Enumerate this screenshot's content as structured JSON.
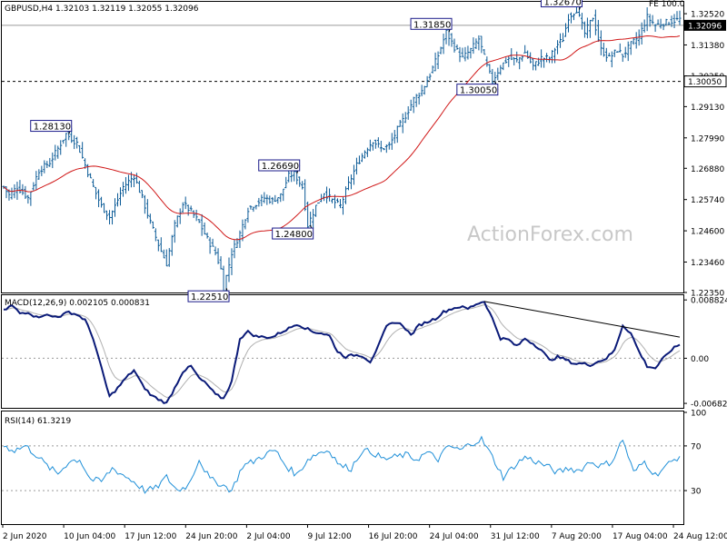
{
  "chart_data": [
    {
      "type": "bar",
      "panel": "price",
      "header": "GBPUSD,H4  1.32103 1.32119 1.32055 1.32096",
      "corner_label": "FE 100.0",
      "watermark": "ActionForex.com",
      "ylim": [
        1.2235,
        1.3292
      ],
      "y_ticks": [
        "1.32520",
        "1.31380",
        "1.30250",
        "1.29130",
        "1.27990",
        "1.26880",
        "1.25740",
        "1.24600",
        "1.23460",
        "1.22350"
      ],
      "x_ticks": [
        "2 Jun 2020",
        "10 Jun 04:00",
        "17 Jun 12:00",
        "24 Jun 20:00",
        "2 Jul 04:00",
        "9 Jul 12:00",
        "16 Jul 20:00",
        "24 Jul 04:00",
        "31 Jul 12:00",
        "7 Aug 20:00",
        "17 Aug 04:00",
        "24 Aug 12:00"
      ],
      "current_price": "1.32096",
      "support_level": "1.30050",
      "fe_level": "1.32520",
      "price_anchors": [
        [
          0,
          1.262
        ],
        [
          2,
          1.259
        ],
        [
          5,
          1.262
        ],
        [
          9,
          1.258
        ],
        [
          13,
          1.268
        ],
        [
          17,
          1.271
        ],
        [
          20,
          1.276
        ],
        [
          23,
          1.2813
        ],
        [
          27,
          1.278
        ],
        [
          30,
          1.27
        ],
        [
          33,
          1.262
        ],
        [
          36,
          1.255
        ],
        [
          39,
          1.251
        ],
        [
          41,
          1.255
        ],
        [
          44,
          1.262
        ],
        [
          48,
          1.266
        ],
        [
          51,
          1.258
        ],
        [
          54,
          1.249
        ],
        [
          57,
          1.241
        ],
        [
          60,
          1.234
        ],
        [
          63,
          1.248
        ],
        [
          66,
          1.256
        ],
        [
          69,
          1.253
        ],
        [
          72,
          1.249
        ],
        [
          75,
          1.243
        ],
        [
          78,
          1.238
        ],
        [
          80,
          1.232
        ],
        [
          81,
          1.2251
        ],
        [
          84,
          1.238
        ],
        [
          87,
          1.245
        ],
        [
          90,
          1.254
        ],
        [
          93,
          1.256
        ],
        [
          96,
          1.258
        ],
        [
          99,
          1.257
        ],
        [
          102,
          1.259
        ],
        [
          105,
          1.266
        ],
        [
          107,
          1.2669
        ],
        [
          110,
          1.262
        ],
        [
          112,
          1.248
        ],
        [
          115,
          1.255
        ],
        [
          118,
          1.26
        ],
        [
          121,
          1.257
        ],
        [
          124,
          1.255
        ],
        [
          127,
          1.263
        ],
        [
          130,
          1.27
        ],
        [
          133,
          1.275
        ],
        [
          136,
          1.279
        ],
        [
          139,
          1.276
        ],
        [
          142,
          1.277
        ],
        [
          145,
          1.283
        ],
        [
          148,
          1.288
        ],
        [
          151,
          1.294
        ],
        [
          154,
          1.297
        ],
        [
          157,
          1.303
        ],
        [
          160,
          1.31
        ],
        [
          163,
          1.3185
        ],
        [
          166,
          1.313
        ],
        [
          169,
          1.309
        ],
        [
          172,
          1.312
        ],
        [
          175,
          1.316
        ],
        [
          178,
          1.306
        ],
        [
          180,
          1.3005
        ],
        [
          183,
          1.306
        ],
        [
          186,
          1.309
        ],
        [
          189,
          1.308
        ],
        [
          192,
          1.311
        ],
        [
          195,
          1.306
        ],
        [
          198,
          1.309
        ],
        [
          201,
          1.309
        ],
        [
          204,
          1.314
        ],
        [
          206,
          1.316
        ],
        [
          208,
          1.324
        ],
        [
          211,
          1.3267
        ],
        [
          214,
          1.318
        ],
        [
          217,
          1.324
        ],
        [
          220,
          1.312
        ],
        [
          223,
          1.309
        ],
        [
          226,
          1.312
        ],
        [
          228,
          1.31
        ],
        [
          231,
          1.314
        ],
        [
          234,
          1.317
        ],
        [
          237,
          1.324
        ],
        [
          240,
          1.321
        ]
      ],
      "series": [
        {
          "key": "ma",
          "color": "#d01818"
        },
        {
          "key": "price_bars",
          "color": "#0a5a96"
        }
      ],
      "callouts": [
        {
          "label": "1.28130",
          "bar": 23,
          "value": 1.2813,
          "pos": "above"
        },
        {
          "label": "1.22510",
          "bar": 81,
          "value": 1.2251,
          "pos": "below"
        },
        {
          "label": "1.26690",
          "bar": 107,
          "value": 1.2669,
          "pos": "above"
        },
        {
          "label": "1.24800",
          "bar": 112,
          "value": 1.248,
          "pos": "below"
        },
        {
          "label": "1.31850",
          "bar": 163,
          "value": 1.3185,
          "pos": "above"
        },
        {
          "label": "1.30050",
          "bar": 180,
          "value": 1.3005,
          "pos": "below"
        },
        {
          "label": "1.32670",
          "bar": 211,
          "value": 1.3267,
          "pos": "above"
        }
      ]
    },
    {
      "type": "line",
      "panel": "macd",
      "header": "MACD(12,26,9) 0.002105 0.000831",
      "ylim": [
        -0.0075,
        0.0094
      ],
      "y_ticks": [
        "0.008824",
        "0.00",
        "-0.006825"
      ],
      "series": [
        {
          "key": "macd",
          "color": "#0a1a78"
        },
        {
          "key": "signal",
          "color": "#b0b0b0"
        }
      ],
      "macd_anchors": [
        [
          0,
          0.0072
        ],
        [
          3,
          0.008
        ],
        [
          6,
          0.0068
        ],
        [
          9,
          0.007
        ],
        [
          12,
          0.0062
        ],
        [
          15,
          0.0066
        ],
        [
          18,
          0.0063
        ],
        [
          21,
          0.0064
        ],
        [
          24,
          0.007
        ],
        [
          27,
          0.0066
        ],
        [
          30,
          0.0058
        ],
        [
          33,
          0.003
        ],
        [
          36,
          -0.0015
        ],
        [
          39,
          -0.0058
        ],
        [
          42,
          -0.0045
        ],
        [
          45,
          -0.003
        ],
        [
          48,
          -0.0018
        ],
        [
          51,
          -0.004
        ],
        [
          54,
          -0.0055
        ],
        [
          57,
          -0.0062
        ],
        [
          60,
          -0.0068
        ],
        [
          63,
          -0.0045
        ],
        [
          66,
          -0.002
        ],
        [
          69,
          -0.0012
        ],
        [
          72,
          -0.003
        ],
        [
          75,
          -0.004
        ],
        [
          78,
          -0.0055
        ],
        [
          81,
          -0.0061
        ],
        [
          84,
          -0.0035
        ],
        [
          87,
          0.003
        ],
        [
          90,
          0.004
        ],
        [
          93,
          0.0033
        ],
        [
          96,
          0.0032
        ],
        [
          99,
          0.0032
        ],
        [
          102,
          0.0039
        ],
        [
          105,
          0.0045
        ],
        [
          108,
          0.0052
        ],
        [
          111,
          0.0046
        ],
        [
          114,
          0.004
        ],
        [
          117,
          0.0038
        ],
        [
          120,
          0.0034
        ],
        [
          123,
          0.001
        ],
        [
          126,
          0.0002
        ],
        [
          129,
          0.0005
        ],
        [
          132,
          0.0004
        ],
        [
          135,
          -0.0005
        ],
        [
          138,
          0.0018
        ],
        [
          141,
          0.0048
        ],
        [
          144,
          0.0055
        ],
        [
          147,
          0.005
        ],
        [
          150,
          0.0035
        ],
        [
          153,
          0.005
        ],
        [
          156,
          0.0055
        ],
        [
          159,
          0.006
        ],
        [
          162,
          0.007
        ],
        [
          165,
          0.0075
        ],
        [
          168,
          0.0078
        ],
        [
          171,
          0.0075
        ],
        [
          174,
          0.0082
        ],
        [
          177,
          0.0086
        ],
        [
          180,
          0.006
        ],
        [
          183,
          0.003
        ],
        [
          186,
          0.0028
        ],
        [
          189,
          0.0018
        ],
        [
          192,
          0.003
        ],
        [
          195,
          0.0022
        ],
        [
          198,
          0.0013
        ],
        [
          201,
          -0.0003
        ],
        [
          204,
          0.0002
        ],
        [
          207,
          -0.0002
        ],
        [
          210,
          -0.0008
        ],
        [
          213,
          -0.0008
        ],
        [
          216,
          -0.001
        ],
        [
          219,
          -0.0005
        ],
        [
          222,
          0.0
        ],
        [
          225,
          0.0012
        ],
        [
          228,
          0.005
        ],
        [
          231,
          0.0038
        ],
        [
          234,
          0.001
        ],
        [
          237,
          -0.0012
        ],
        [
          240,
          -0.0015
        ],
        [
          243,
          0.0
        ],
        [
          246,
          0.0013
        ],
        [
          249,
          0.0021
        ]
      ],
      "trendline": {
        "from": [
          177,
          0.0086
        ],
        "to": [
          249,
          0.0032
        ],
        "color": "#000000"
      }
    },
    {
      "type": "line",
      "panel": "rsi",
      "header": "RSI(14) 61.3219",
      "ylim": [
        0,
        100
      ],
      "y_ticks": [
        "100",
        "70",
        "30",
        "0"
      ],
      "series": [
        {
          "key": "rsi",
          "color": "#1e8fd8"
        }
      ],
      "rsi_anchors": [
        [
          0,
          70
        ],
        [
          4,
          66
        ],
        [
          8,
          70
        ],
        [
          12,
          62
        ],
        [
          16,
          52
        ],
        [
          20,
          45
        ],
        [
          24,
          56
        ],
        [
          28,
          58
        ],
        [
          32,
          40
        ],
        [
          36,
          38
        ],
        [
          40,
          50
        ],
        [
          44,
          44
        ],
        [
          48,
          38
        ],
        [
          52,
          30
        ],
        [
          56,
          32
        ],
        [
          60,
          42
        ],
        [
          64,
          30
        ],
        [
          68,
          35
        ],
        [
          72,
          58
        ],
        [
          76,
          40
        ],
        [
          80,
          36
        ],
        [
          84,
          30
        ],
        [
          88,
          52
        ],
        [
          92,
          56
        ],
        [
          96,
          62
        ],
        [
          100,
          66
        ],
        [
          104,
          52
        ],
        [
          108,
          44
        ],
        [
          112,
          58
        ],
        [
          116,
          64
        ],
        [
          120,
          66
        ],
        [
          124,
          52
        ],
        [
          128,
          50
        ],
        [
          132,
          66
        ],
        [
          136,
          64
        ],
        [
          140,
          58
        ],
        [
          144,
          60
        ],
        [
          148,
          62
        ],
        [
          152,
          58
        ],
        [
          156,
          64
        ],
        [
          160,
          58
        ],
        [
          164,
          70
        ],
        [
          168,
          66
        ],
        [
          172,
          72
        ],
        [
          176,
          76
        ],
        [
          180,
          60
        ],
        [
          184,
          42
        ],
        [
          188,
          52
        ],
        [
          192,
          60
        ],
        [
          196,
          56
        ],
        [
          200,
          52
        ],
        [
          204,
          46
        ],
        [
          208,
          50
        ],
        [
          212,
          48
        ],
        [
          216,
          56
        ],
        [
          220,
          52
        ],
        [
          224,
          56
        ],
        [
          228,
          76
        ],
        [
          232,
          46
        ],
        [
          236,
          56
        ],
        [
          240,
          44
        ],
        [
          244,
          52
        ],
        [
          249,
          61.3
        ]
      ]
    }
  ]
}
